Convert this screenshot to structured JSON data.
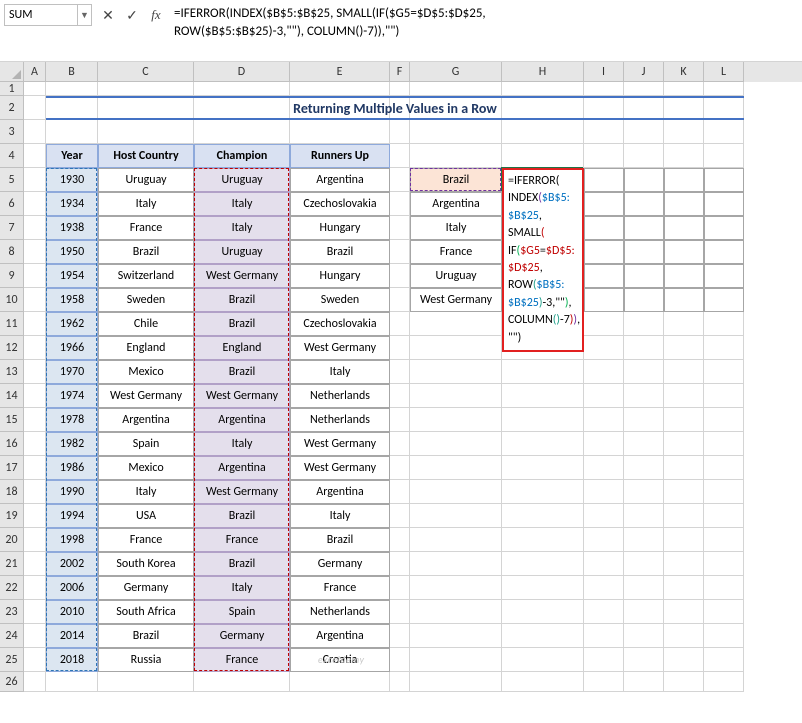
{
  "formulaBar": {
    "nameBox": "SUM",
    "formula_display": "=IFERROR(INDEX($B$5:$B$25, SMALL(IF($G5=$D$5:$D$25,\nROW($B$5:$B$25)-3,\"\"), COLUMN()-7)),\"\")"
  },
  "columns": [
    "A",
    "B",
    "C",
    "D",
    "E",
    "F",
    "G",
    "H",
    "I",
    "J",
    "K",
    "L"
  ],
  "colWidths": {
    "A": 22,
    "B": 52,
    "C": 96,
    "D": 96,
    "E": 100,
    "F": 20,
    "G": 92,
    "H": 82,
    "I": 40,
    "J": 40,
    "K": 40,
    "L": 40
  },
  "rowCount": 26,
  "title": "Returning Multiple Values in a Row",
  "table": {
    "headers": {
      "year": "Year",
      "host": "Host Country",
      "champ": "Champion",
      "run": "Runners Up"
    },
    "rows": [
      {
        "year": "1930",
        "host": "Uruguay",
        "champ": "Uruguay",
        "run": "Argentina"
      },
      {
        "year": "1934",
        "host": "Italy",
        "champ": "Italy",
        "run": "Czechoslovakia"
      },
      {
        "year": "1938",
        "host": "France",
        "champ": "Italy",
        "run": "Hungary"
      },
      {
        "year": "1950",
        "host": "Brazil",
        "champ": "Uruguay",
        "run": "Brazil"
      },
      {
        "year": "1954",
        "host": "Switzerland",
        "champ": "West Germany",
        "run": "Hungary"
      },
      {
        "year": "1958",
        "host": "Sweden",
        "champ": "Brazil",
        "run": "Sweden"
      },
      {
        "year": "1962",
        "host": "Chile",
        "champ": "Brazil",
        "run": "Czechoslovakia"
      },
      {
        "year": "1966",
        "host": "England",
        "champ": "England",
        "run": "West Germany"
      },
      {
        "year": "1970",
        "host": "Mexico",
        "champ": "Brazil",
        "run": "Italy"
      },
      {
        "year": "1974",
        "host": "West Germany",
        "champ": "West Germany",
        "run": "Netherlands"
      },
      {
        "year": "1978",
        "host": "Argentina",
        "champ": "Argentina",
        "run": "Netherlands"
      },
      {
        "year": "1982",
        "host": "Spain",
        "champ": "Italy",
        "run": "West Germany"
      },
      {
        "year": "1986",
        "host": "Mexico",
        "champ": "Argentina",
        "run": "West Germany"
      },
      {
        "year": "1990",
        "host": "Italy",
        "champ": "West Germany",
        "run": "Argentina"
      },
      {
        "year": "1994",
        "host": "USA",
        "champ": "Brazil",
        "run": "Italy"
      },
      {
        "year": "1998",
        "host": "France",
        "champ": "France",
        "run": "Brazil"
      },
      {
        "year": "2002",
        "host": "South Korea",
        "champ": "Brazil",
        "run": "Germany"
      },
      {
        "year": "2006",
        "host": "Germany",
        "champ": "Italy",
        "run": "France"
      },
      {
        "year": "2010",
        "host": "South Africa",
        "champ": "Spain",
        "run": "Netherlands"
      },
      {
        "year": "2014",
        "host": "Brazil",
        "champ": "Germany",
        "run": "Argentina"
      },
      {
        "year": "2018",
        "host": "Russia",
        "champ": "France",
        "run": "Croatia"
      }
    ]
  },
  "lookup": {
    "items": [
      "Brazil",
      "Argentina",
      "Italy",
      "France",
      "Uruguay",
      "West Germany"
    ]
  },
  "overlay": {
    "lines": [
      [
        {
          "t": "=",
          "c": "fo-black"
        },
        {
          "t": "IFERROR",
          "c": "fo-black"
        },
        {
          "t": "(",
          "c": "fo-black"
        }
      ],
      [
        {
          "t": "INDEX",
          "c": "fo-black"
        },
        {
          "t": "(",
          "c": "fo-purple"
        },
        {
          "t": "$B$5:",
          "c": "fo-blue"
        }
      ],
      [
        {
          "t": "$B$25",
          "c": "fo-blue"
        },
        {
          "t": ", ",
          "c": "fo-black"
        },
        {
          "t": "SMALL",
          "c": "fo-black"
        },
        {
          "t": "(",
          "c": "fo-red"
        }
      ],
      [
        {
          "t": "IF",
          "c": "fo-black"
        },
        {
          "t": "(",
          "c": "fo-green"
        },
        {
          "t": "$G5",
          "c": "fo-red"
        },
        {
          "t": "=",
          "c": "fo-black"
        },
        {
          "t": "$D$5:",
          "c": "fo-red"
        }
      ],
      [
        {
          "t": "$D$25",
          "c": "fo-red"
        },
        {
          "t": ",",
          "c": "fo-black"
        }
      ],
      [
        {
          "t": "ROW",
          "c": "fo-black"
        },
        {
          "t": "(",
          "c": "fo-teal"
        },
        {
          "t": "$B$5:",
          "c": "fo-blue"
        }
      ],
      [
        {
          "t": "$B$25",
          "c": "fo-blue"
        },
        {
          "t": ")",
          "c": "fo-teal"
        },
        {
          "t": "-3,\"\"",
          "c": "fo-black"
        },
        {
          "t": ")",
          "c": "fo-green"
        },
        {
          "t": ",",
          "c": "fo-black"
        }
      ],
      [
        {
          "t": "COLUMN",
          "c": "fo-black"
        },
        {
          "t": "()",
          "c": "fo-teal"
        },
        {
          "t": "-7",
          "c": "fo-black"
        },
        {
          "t": ")",
          "c": "fo-red"
        },
        {
          "t": ")",
          "c": "fo-purple"
        },
        {
          "t": ",",
          "c": "fo-black"
        }
      ],
      [
        {
          "t": "\"\"",
          "c": "fo-black"
        },
        {
          "t": ")",
          "c": "fo-black"
        }
      ]
    ]
  },
  "watermark": "exceldemy",
  "colors": {
    "header_bg": "#d9e1f2",
    "year_bg": "#dce6f1",
    "champ_bg": "#e4dfec",
    "lookup_hdr_bg": "#fce4d6",
    "title_color": "#203864",
    "accent": "#4472c4",
    "overlay_border": "#e22020"
  }
}
